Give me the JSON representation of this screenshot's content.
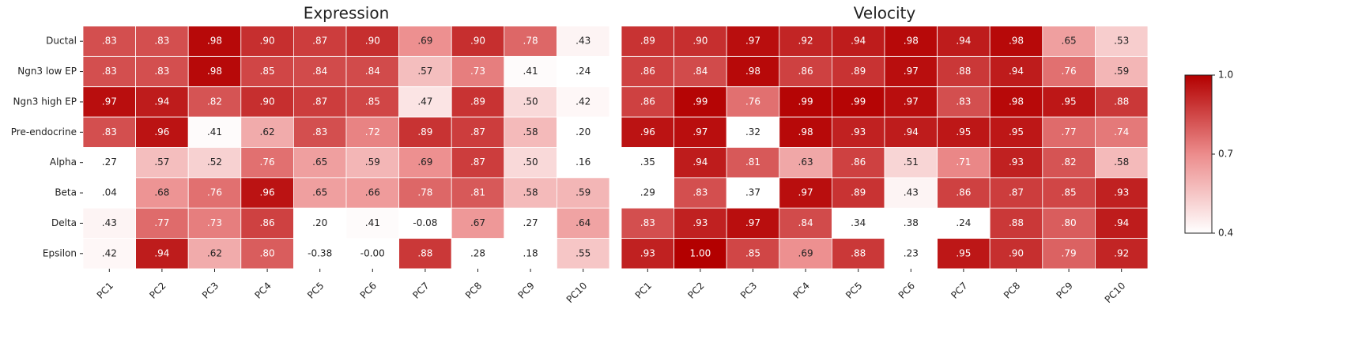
{
  "chart_data": [
    {
      "type": "heatmap",
      "title": "Expression",
      "x": [
        "PC1",
        "PC2",
        "PC3",
        "PC4",
        "PC5",
        "PC6",
        "PC7",
        "PC8",
        "PC9",
        "PC10"
      ],
      "y": [
        "Ductal",
        "Ngn3 low EP",
        "Ngn3 high EP",
        "Pre-endocrine",
        "Alpha",
        "Beta",
        "Delta",
        "Epsilon"
      ],
      "values": [
        [
          0.83,
          0.83,
          0.98,
          0.9,
          0.87,
          0.9,
          0.69,
          0.9,
          0.78,
          0.43
        ],
        [
          0.83,
          0.83,
          0.98,
          0.85,
          0.84,
          0.84,
          0.57,
          0.73,
          0.41,
          0.24
        ],
        [
          0.97,
          0.94,
          0.82,
          0.9,
          0.87,
          0.85,
          0.47,
          0.89,
          0.5,
          0.42
        ],
        [
          0.83,
          0.96,
          0.41,
          0.62,
          0.83,
          0.72,
          0.89,
          0.87,
          0.58,
          0.2
        ],
        [
          0.27,
          0.57,
          0.52,
          0.76,
          0.65,
          0.59,
          0.69,
          0.87,
          0.5,
          0.16
        ],
        [
          0.04,
          0.68,
          0.76,
          0.96,
          0.65,
          0.66,
          0.78,
          0.81,
          0.58,
          0.59
        ],
        [
          0.43,
          0.77,
          0.73,
          0.86,
          0.2,
          0.41,
          -0.08,
          0.67,
          0.27,
          0.64
        ],
        [
          0.42,
          0.94,
          0.62,
          0.8,
          -0.38,
          0,
          0.88,
          0.28,
          0.18,
          0.55
        ]
      ],
      "value_labels": [
        [
          ".83",
          ".83",
          ".98",
          ".90",
          ".87",
          ".90",
          ".69",
          ".90",
          ".78",
          ".43"
        ],
        [
          ".83",
          ".83",
          ".98",
          ".85",
          ".84",
          ".84",
          ".57",
          ".73",
          ".41",
          ".24"
        ],
        [
          ".97",
          ".94",
          ".82",
          ".90",
          ".87",
          ".85",
          ".47",
          ".89",
          ".50",
          ".42"
        ],
        [
          ".83",
          ".96",
          ".41",
          ".62",
          ".83",
          ".72",
          ".89",
          ".87",
          ".58",
          ".20"
        ],
        [
          ".27",
          ".57",
          ".52",
          ".76",
          ".65",
          ".59",
          ".69",
          ".87",
          ".50",
          ".16"
        ],
        [
          ".04",
          ".68",
          ".76",
          ".96",
          ".65",
          ".66",
          ".78",
          ".81",
          ".58",
          ".59"
        ],
        [
          ".43",
          ".77",
          ".73",
          ".86",
          ".20",
          ".41",
          "-0.08",
          ".67",
          ".27",
          ".64"
        ],
        [
          ".42",
          ".94",
          ".62",
          ".80",
          "-0.38",
          "-0.00",
          ".88",
          ".28",
          ".18",
          ".55"
        ]
      ]
    },
    {
      "type": "heatmap",
      "title": "Velocity",
      "x": [
        "PC1",
        "PC2",
        "PC3",
        "PC4",
        "PC5",
        "PC6",
        "PC7",
        "PC8",
        "PC9",
        "PC10"
      ],
      "values": [
        [
          0.89,
          0.9,
          0.97,
          0.92,
          0.94,
          0.98,
          0.94,
          0.98,
          0.65,
          0.53
        ],
        [
          0.86,
          0.84,
          0.98,
          0.86,
          0.89,
          0.97,
          0.88,
          0.94,
          0.76,
          0.59
        ],
        [
          0.86,
          0.99,
          0.76,
          0.99,
          0.99,
          0.97,
          0.83,
          0.98,
          0.95,
          0.88
        ],
        [
          0.96,
          0.97,
          0.32,
          0.98,
          0.93,
          0.94,
          0.95,
          0.95,
          0.77,
          0.74
        ],
        [
          0.35,
          0.94,
          0.81,
          0.63,
          0.86,
          0.51,
          0.71,
          0.93,
          0.82,
          0.58
        ],
        [
          0.29,
          0.83,
          0.37,
          0.97,
          0.89,
          0.43,
          0.86,
          0.87,
          0.85,
          0.93
        ],
        [
          0.83,
          0.93,
          0.97,
          0.84,
          0.34,
          0.38,
          0.24,
          0.88,
          0.8,
          0.94
        ],
        [
          0.93,
          1,
          0.85,
          0.69,
          0.88,
          0.23,
          0.95,
          0.9,
          0.79,
          0.92
        ]
      ],
      "value_labels": [
        [
          ".89",
          ".90",
          ".97",
          ".92",
          ".94",
          ".98",
          ".94",
          ".98",
          ".65",
          ".53"
        ],
        [
          ".86",
          ".84",
          ".98",
          ".86",
          ".89",
          ".97",
          ".88",
          ".94",
          ".76",
          ".59"
        ],
        [
          ".86",
          ".99",
          ".76",
          ".99",
          ".99",
          ".97",
          ".83",
          ".98",
          ".95",
          ".88"
        ],
        [
          ".96",
          ".97",
          ".32",
          ".98",
          ".93",
          ".94",
          ".95",
          ".95",
          ".77",
          ".74"
        ],
        [
          ".35",
          ".94",
          ".81",
          ".63",
          ".86",
          ".51",
          ".71",
          ".93",
          ".82",
          ".58"
        ],
        [
          ".29",
          ".83",
          ".37",
          ".97",
          ".89",
          ".43",
          ".86",
          ".87",
          ".85",
          ".93"
        ],
        [
          ".83",
          ".93",
          ".97",
          ".84",
          ".34",
          ".38",
          ".24",
          ".88",
          ".80",
          ".94"
        ],
        [
          ".93",
          "1.00",
          ".85",
          ".69",
          ".88",
          ".23",
          ".95",
          ".90",
          ".79",
          ".92"
        ]
      ],
      "zlim": [
        0.4,
        1
      ],
      "zticks": [
        0.4,
        0.7,
        {
          "value": 1,
          "label": "1.0"
        }
      ],
      "colors": [
        "#ffffff",
        "#ec8c8c",
        "#b30000"
      ]
    }
  ]
}
